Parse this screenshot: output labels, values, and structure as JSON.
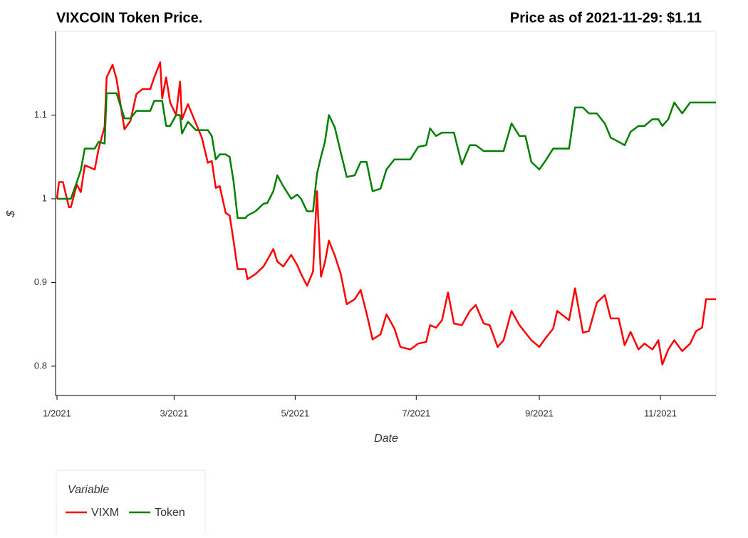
{
  "chart_data": {
    "type": "line",
    "title": "VIXCOIN Token Price.",
    "subtitle": "Price as of 2021-11-29: $1.11",
    "x_label": "Date",
    "y_label": "$",
    "legend_title": "Variable",
    "legend_position": "bottom-left",
    "xlim": [
      "2021-01-01",
      "2021-11-29"
    ],
    "xticks": [
      {
        "value": "2021-01-01",
        "label": "1/2021"
      },
      {
        "value": "2021-03-01",
        "label": "3/2021"
      },
      {
        "value": "2021-05-01",
        "label": "5/2021"
      },
      {
        "value": "2021-07-01",
        "label": "7/2021"
      },
      {
        "value": "2021-09-01",
        "label": "9/2021"
      },
      {
        "value": "2021-11-01",
        "label": "11/2021"
      }
    ],
    "ylim": [
      0.765,
      1.2
    ],
    "yticks": [
      0.8,
      0.9,
      1,
      1.1
    ],
    "x": [
      "2021-01-01",
      "2021-01-02",
      "2021-01-04",
      "2021-01-07",
      "2021-01-08",
      "2021-01-11",
      "2021-01-13",
      "2021-01-15",
      "2021-01-20",
      "2021-01-22",
      "2021-01-25",
      "2021-01-26",
      "2021-01-29",
      "2021-01-31",
      "2021-02-04",
      "2021-02-07",
      "2021-02-10",
      "2021-02-13",
      "2021-02-17",
      "2021-02-19",
      "2021-02-22",
      "2021-02-23",
      "2021-02-25",
      "2021-02-27",
      "2021-03-02",
      "2021-03-04",
      "2021-03-05",
      "2021-03-08",
      "2021-03-12",
      "2021-03-15",
      "2021-03-18",
      "2021-03-20",
      "2021-03-22",
      "2021-03-24",
      "2021-03-27",
      "2021-03-29",
      "2021-03-31",
      "2021-04-02",
      "2021-04-06",
      "2021-04-07",
      "2021-04-11",
      "2021-04-15",
      "2021-04-17",
      "2021-04-20",
      "2021-04-22",
      "2021-04-25",
      "2021-04-29",
      "2021-05-02",
      "2021-05-04",
      "2021-05-07",
      "2021-05-10",
      "2021-05-12",
      "2021-05-14",
      "2021-05-16",
      "2021-05-18",
      "2021-05-21",
      "2021-05-24",
      "2021-05-27",
      "2021-05-31",
      "2021-06-03",
      "2021-06-06",
      "2021-06-09",
      "2021-06-13",
      "2021-06-16",
      "2021-06-20",
      "2021-06-23",
      "2021-06-28",
      "2021-07-02",
      "2021-07-06",
      "2021-07-08",
      "2021-07-11",
      "2021-07-14",
      "2021-07-17",
      "2021-07-20",
      "2021-07-24",
      "2021-07-28",
      "2021-07-31",
      "2021-08-04",
      "2021-08-07",
      "2021-08-11",
      "2021-08-14",
      "2021-08-18",
      "2021-08-22",
      "2021-08-25",
      "2021-08-28",
      "2021-09-01",
      "2021-09-04",
      "2021-09-08",
      "2021-09-10",
      "2021-09-16",
      "2021-09-19",
      "2021-09-23",
      "2021-09-26",
      "2021-09-30",
      "2021-10-04",
      "2021-10-07",
      "2021-10-11",
      "2021-10-14",
      "2021-10-17",
      "2021-10-21",
      "2021-10-24",
      "2021-10-28",
      "2021-10-31",
      "2021-11-02",
      "2021-11-05",
      "2021-11-08",
      "2021-11-12",
      "2021-11-16",
      "2021-11-19",
      "2021-11-22",
      "2021-11-24",
      "2021-11-29"
    ],
    "series": [
      {
        "name": "VIXM",
        "color": "#ff0000",
        "values": [
          1.0,
          1.02,
          1.02,
          0.99,
          0.99,
          1.017,
          1.008,
          1.04,
          1.035,
          1.06,
          1.086,
          1.145,
          1.16,
          1.143,
          1.083,
          1.093,
          1.125,
          1.131,
          1.131,
          1.145,
          1.163,
          1.12,
          1.145,
          1.115,
          1.1,
          1.14,
          1.095,
          1.113,
          1.09,
          1.073,
          1.043,
          1.045,
          1.013,
          1.015,
          0.983,
          0.98,
          0.949,
          0.916,
          0.916,
          0.904,
          0.91,
          0.919,
          0.927,
          0.94,
          0.925,
          0.919,
          0.933,
          0.921,
          0.91,
          0.896,
          0.913,
          1.009,
          0.907,
          0.924,
          0.95,
          0.932,
          0.91,
          0.874,
          0.88,
          0.891,
          0.863,
          0.832,
          0.838,
          0.862,
          0.845,
          0.823,
          0.82,
          0.827,
          0.829,
          0.849,
          0.846,
          0.855,
          0.888,
          0.851,
          0.849,
          0.866,
          0.873,
          0.851,
          0.849,
          0.823,
          0.831,
          0.866,
          0.849,
          0.84,
          0.831,
          0.823,
          0.833,
          0.845,
          0.866,
          0.855,
          0.893,
          0.84,
          0.842,
          0.876,
          0.885,
          0.857,
          0.857,
          0.825,
          0.841,
          0.82,
          0.827,
          0.82,
          0.831,
          0.802,
          0.82,
          0.831,
          0.818,
          0.827,
          0.842,
          0.846,
          0.88,
          0.88
        ]
      },
      {
        "name": "Token",
        "color": "#008000",
        "values": [
          1.0,
          1.0,
          1.0,
          1.0,
          1.0,
          1.02,
          1.034,
          1.06,
          1.06,
          1.068,
          1.066,
          1.126,
          1.126,
          1.126,
          1.096,
          1.096,
          1.105,
          1.105,
          1.105,
          1.117,
          1.117,
          1.117,
          1.087,
          1.087,
          1.1,
          1.1,
          1.078,
          1.092,
          1.082,
          1.082,
          1.082,
          1.075,
          1.047,
          1.053,
          1.053,
          1.05,
          1.02,
          0.977,
          0.977,
          0.98,
          0.985,
          0.994,
          0.995,
          1.009,
          1.028,
          1.015,
          1.0,
          1.005,
          1.0,
          0.985,
          0.985,
          1.03,
          1.05,
          1.068,
          1.1,
          1.085,
          1.055,
          1.026,
          1.028,
          1.044,
          1.044,
          1.009,
          1.012,
          1.035,
          1.047,
          1.047,
          1.047,
          1.062,
          1.064,
          1.084,
          1.075,
          1.079,
          1.079,
          1.079,
          1.041,
          1.064,
          1.064,
          1.057,
          1.057,
          1.057,
          1.057,
          1.09,
          1.075,
          1.075,
          1.044,
          1.035,
          1.045,
          1.06,
          1.06,
          1.06,
          1.109,
          1.109,
          1.102,
          1.102,
          1.09,
          1.073,
          1.068,
          1.064,
          1.08,
          1.087,
          1.087,
          1.095,
          1.095,
          1.087,
          1.095,
          1.115,
          1.102,
          1.115,
          1.115,
          1.115,
          1.115,
          1.115
        ]
      }
    ]
  }
}
